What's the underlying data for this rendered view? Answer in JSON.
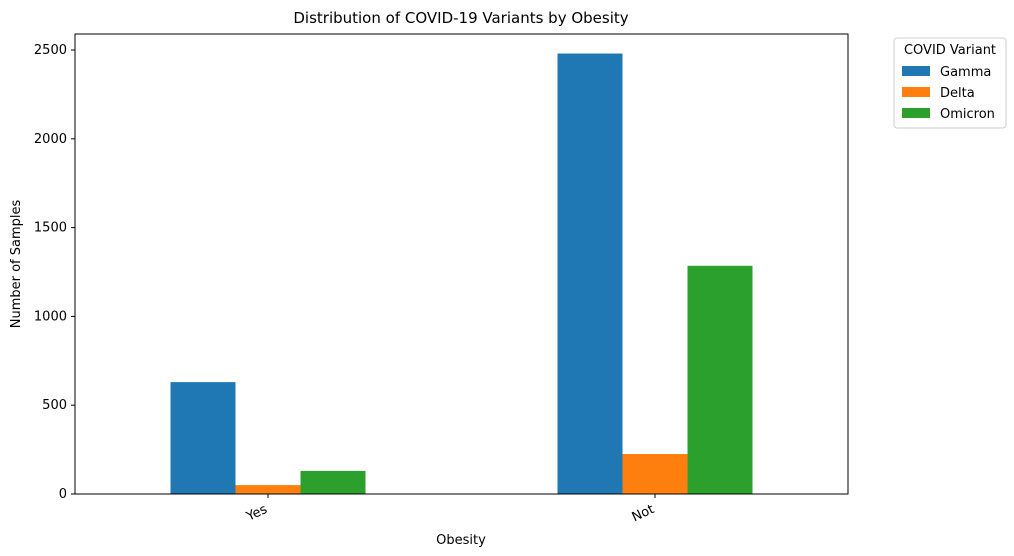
{
  "chart_data": {
    "type": "bar",
    "title": "Distribution of COVID-19 Variants by Obesity",
    "xlabel": "Obesity",
    "ylabel": "Number of Samples",
    "categories": [
      "Yes",
      "Not"
    ],
    "series": [
      {
        "name": "Gamma",
        "color": "#1f77b4",
        "values": [
          630,
          2480
        ]
      },
      {
        "name": "Delta",
        "color": "#ff7f0e",
        "values": [
          50,
          225
        ]
      },
      {
        "name": "Omicron",
        "color": "#2ca02c",
        "values": [
          130,
          1285
        ]
      }
    ],
    "ylim": [
      0,
      2500
    ],
    "yticks": [
      "0",
      "500",
      "1000",
      "1500",
      "2000",
      "2500"
    ],
    "grid": false,
    "legend": {
      "title": "COVID Variant",
      "placement": "outside-top-right"
    }
  }
}
